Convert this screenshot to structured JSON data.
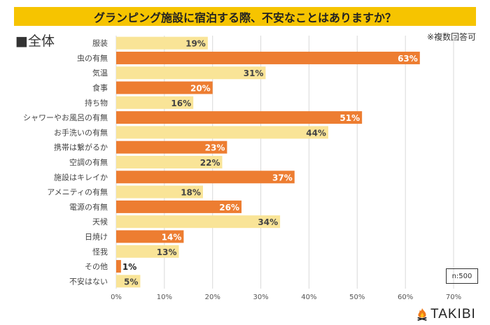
{
  "chart_data": {
    "type": "bar",
    "orientation": "horizontal",
    "title": "グランピング施設に宿泊する際、不安なことはありますか？",
    "subtitle": "■全体",
    "note": "※複数回答可",
    "sample": "n:500",
    "categories": [
      "服装",
      "虫の有無",
      "気温",
      "食事",
      "持ち物",
      "シャワーやお風呂の有無",
      "お手洗いの有無",
      "携帯は繋がるか",
      "空調の有無",
      "施設はキレイか",
      "アメニティの有無",
      "電源の有無",
      "天候",
      "日焼け",
      "怪我",
      "その他",
      "不安はない"
    ],
    "values": [
      19,
      63,
      31,
      20,
      16,
      51,
      44,
      23,
      22,
      37,
      18,
      26,
      34,
      14,
      13,
      1,
      5
    ],
    "unit": "%",
    "xlim": [
      0,
      70
    ],
    "xticks": [
      "0%",
      "10%",
      "20%",
      "30%",
      "40%",
      "50%",
      "60%",
      "70%"
    ],
    "grid": true,
    "colors": {
      "light": "#f9e497",
      "dark": "#ed7d31",
      "title_bg": "#f6c400"
    }
  },
  "brand": {
    "name": "TAKIBI",
    "icon": "campfire-icon"
  }
}
